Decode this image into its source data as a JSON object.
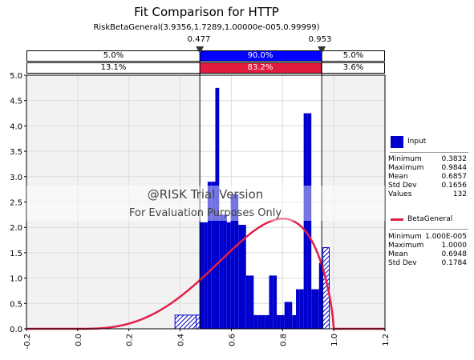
{
  "chart_data": {
    "type": "bar",
    "title": "Fit Comparison for HTTP",
    "subtitle": "RiskBetaGeneral(3.9356,1.7289,1.00000e-005,0.99999)",
    "markers": [
      "0.477",
      "0.953"
    ],
    "band_input": {
      "left": "5.0%",
      "middle": "90.0%",
      "right": "5.0%"
    },
    "band_fit": {
      "left": "13.1%",
      "middle": "83.2%",
      "right": "3.6%"
    },
    "xlim": [
      -0.2,
      1.2
    ],
    "ylim": [
      0,
      5
    ],
    "xticks": [
      "-0.2",
      "0.0",
      "0.2",
      "0.4",
      "0.6",
      "0.8",
      "1.0",
      "1.2"
    ],
    "yticks": [
      "0.0",
      "0.5",
      "1.0",
      "1.5",
      "2.0",
      "2.5",
      "3.0",
      "3.5",
      "4.0",
      "4.5",
      "5.0"
    ],
    "grid": true,
    "histogram": {
      "name": "Input",
      "bin_edges": [
        0.38,
        0.4625,
        0.4775,
        0.4925,
        0.5075,
        0.5225,
        0.5375,
        0.5525,
        0.5675,
        0.5825,
        0.5975,
        0.6125,
        0.6275,
        0.6425,
        0.6575,
        0.6725,
        0.6875,
        0.7025,
        0.7175,
        0.7325,
        0.7475,
        0.7625,
        0.7775,
        0.7925,
        0.8075,
        0.8225,
        0.8375,
        0.8525,
        0.8675,
        0.8825,
        0.8975,
        0.9125,
        0.9275,
        0.9425,
        0.9575,
        0.9825
      ],
      "densities": [
        0.27,
        0.27,
        2.1,
        2.1,
        2.9,
        2.9,
        4.75,
        2.25,
        2.25,
        2.1,
        2.65,
        2.65,
        2.05,
        2.05,
        1.05,
        1.05,
        0.27,
        0.27,
        0.27,
        0.27,
        1.05,
        1.05,
        0.27,
        0.27,
        0.53,
        0.53,
        0.27,
        0.78,
        0.78,
        4.25,
        4.25,
        0.78,
        0.78,
        1.3,
        1.6
      ],
      "color": "#0000cc"
    },
    "fit_curve": {
      "name": "BetaGeneral",
      "alpha": 3.9356,
      "beta": 1.7289,
      "min": 1e-05,
      "max": 0.99999,
      "color": "#e0204a"
    },
    "watermark": {
      "line1": "@RISK Trial Version",
      "line2": "For Evaluation Purposes Only"
    },
    "stats_input": {
      "label": "Input",
      "rows": [
        [
          "Minimum",
          "0.3832"
        ],
        [
          "Maximum",
          "0.9844"
        ],
        [
          "Mean",
          "0.6857"
        ],
        [
          "Std Dev",
          "0.1656"
        ],
        [
          "Values",
          "132"
        ]
      ]
    },
    "stats_fit": {
      "label": "BetaGeneral",
      "rows": [
        [
          "Minimum",
          "1.000E-005"
        ],
        [
          "Maximum",
          "1.0000"
        ],
        [
          "Mean",
          "0.6948"
        ],
        [
          "Std Dev",
          "0.1784"
        ]
      ]
    },
    "colors": {
      "input": "#0000cc",
      "fit": "#e0204a",
      "fit_band": "#e21c3f",
      "band_input": "#0000ff",
      "plot_bg": "#f2f2f2"
    }
  }
}
